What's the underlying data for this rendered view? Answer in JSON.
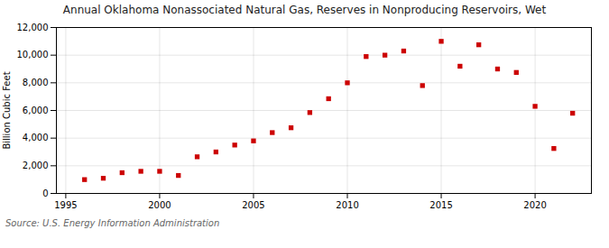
{
  "chart_data": {
    "type": "scatter",
    "title": "Annual Oklahoma Nonassociated Natural Gas, Reserves in Nonproducing Reservoirs, Wet",
    "ylabel": "Billion Cubic Feet",
    "source": "Source: U.S. Energy Information Administration",
    "x": [
      1996,
      1997,
      1998,
      1999,
      2000,
      2001,
      2002,
      2003,
      2004,
      2005,
      2006,
      2007,
      2008,
      2009,
      2010,
      2011,
      2012,
      2013,
      2014,
      2015,
      2016,
      2017,
      2018,
      2019,
      2020,
      2021,
      2022
    ],
    "values": [
      1000,
      1100,
      1500,
      1600,
      1600,
      1300,
      2650,
      3000,
      3500,
      3800,
      4400,
      4750,
      5850,
      6850,
      8000,
      9900,
      10000,
      10300,
      7800,
      11000,
      9200,
      10750,
      9000,
      8750,
      6300,
      3250,
      5800
    ],
    "color": "#cc0000",
    "marker": "square",
    "xlim": [
      1994.5,
      2023
    ],
    "xticks": [
      1995,
      2000,
      2005,
      2010,
      2015,
      2020
    ],
    "ylim": [
      0,
      12000
    ],
    "yticks": [
      0,
      {
        "value": 2000,
        "label": "2,000"
      },
      {
        "value": 4000,
        "label": "4,000"
      },
      {
        "value": 6000,
        "label": "6,000"
      },
      {
        "value": 8000,
        "label": "8,000"
      },
      {
        "value": 10000,
        "label": "10,000"
      },
      {
        "value": 12000,
        "label": "12,000"
      }
    ],
    "grid": true
  }
}
